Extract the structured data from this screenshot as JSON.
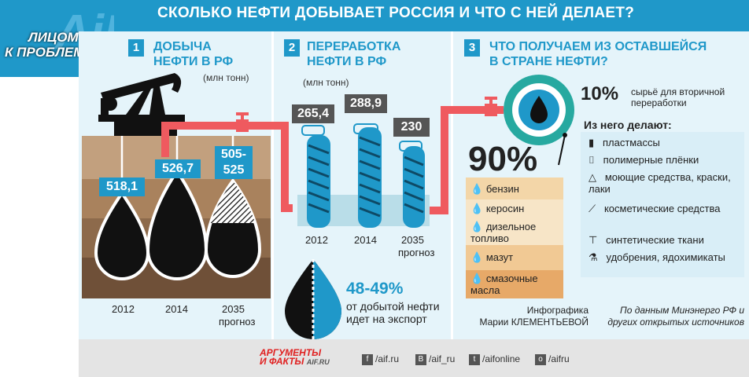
{
  "title": "СКОЛЬКО НЕФТИ ДОБЫВАЕТ РОССИЯ И ЧТО С НЕЙ ДЕЛАЕТ?",
  "badge": {
    "line1": "ЛИЦОМ",
    "line2": "К ПРОБЛЕМЕ",
    "logo": "AiF"
  },
  "production": {
    "number": "1",
    "title1": "ДОБЫЧА",
    "title2": "НЕФТИ В РФ",
    "unit": "(млн тонн)",
    "items": [
      {
        "year": "2012",
        "value": "518,1"
      },
      {
        "year": "2014",
        "value": "526,7"
      },
      {
        "year": "2035",
        "year_note": "прогноз",
        "value1": "505-",
        "value2": "525"
      }
    ]
  },
  "refining": {
    "number": "2",
    "title1": "ПЕРЕРАБОТКА",
    "title2": "НЕФТИ В РФ",
    "unit": "(млн тонн)",
    "items": [
      {
        "year": "2012",
        "value": "265,4"
      },
      {
        "year": "2014",
        "value": "288,9"
      },
      {
        "year": "2035",
        "year_note": "прогноз",
        "value": "230"
      }
    ]
  },
  "export": {
    "percent": "48-49%",
    "text1": "от добытой нефти",
    "text2": "идет на экспорт"
  },
  "products": {
    "number": "3",
    "title1": "ЧТО ПОЛУЧАЕМ ИЗ ОСТАВШЕЙСЯ",
    "title2": "В СТРАНЕ НЕФТИ?",
    "big_percent": "90%",
    "fuels": [
      "бензин",
      "керосин",
      "дизельное топливо",
      "мазут",
      "смазочные масла"
    ],
    "small_percent": "10%",
    "small_text1": "сырьё для вторичной",
    "small_text2": "переработки",
    "made_header": "Из него делают:",
    "made_items": [
      "пластмассы",
      "полимерные плёнки",
      "моющие средства, краски, лаки",
      "косметические средства",
      "синтетические ткани",
      "удобрения, ядохимикаты"
    ]
  },
  "credits": {
    "author1": "Инфографика",
    "author2": "Марии КЛЕМЕНТЬЕВОЙ",
    "source1": "По данным Минэнерго РФ и",
    "source2": "других открытых источников"
  },
  "footer": {
    "brand1": "АРГУМЕНТЫ",
    "brand2": "И ФАКТЫ",
    "brand_site": "AIF.RU",
    "links": [
      {
        "icon": "f",
        "text": "/aif.ru"
      },
      {
        "icon": "В",
        "text": "/aif_ru"
      },
      {
        "icon": "t",
        "text": "/aifonline"
      },
      {
        "icon": "о",
        "text": "/aifru"
      }
    ]
  },
  "colors": {
    "accent": "#1f98c9",
    "pipe": "#ef5a5f",
    "oil": "#111111",
    "earth": "#a9825d",
    "fuel": "#f7e5c7"
  }
}
